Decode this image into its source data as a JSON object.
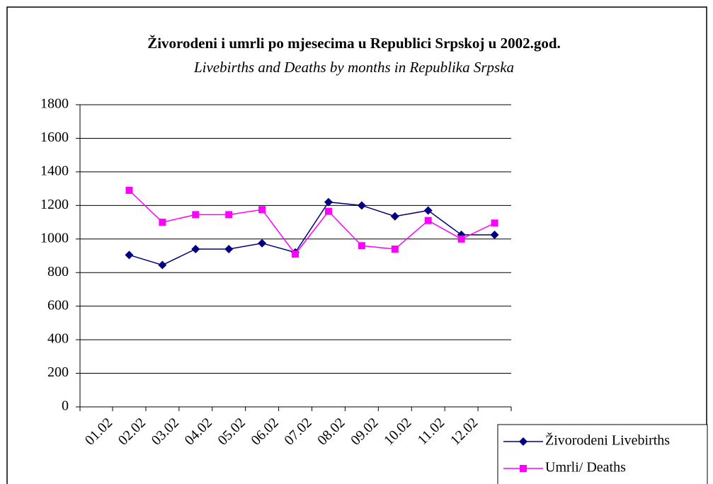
{
  "chart_data": {
    "type": "line",
    "title": "Živorodeni i umrli po mjesecima u Republici Srpskoj u 2002.god.",
    "subtitle": "Livebirths and Deaths by months in Republika Srpska",
    "categories": [
      "01.02",
      "02.02",
      "03.02",
      "04.02",
      "05.02",
      "06.02",
      "07.02",
      "08.02",
      "09.02",
      "10.02",
      "11.02",
      "12.02"
    ],
    "series": [
      {
        "name": "Živorodeni Livebirths",
        "color": "#000080",
        "marker": "diamond",
        "values": [
          905,
          845,
          940,
          940,
          975,
          920,
          1220,
          1200,
          1135,
          1170,
          1025,
          1025
        ]
      },
      {
        "name": "Umrli/ Deaths",
        "color": "#ff00ff",
        "marker": "square",
        "values": [
          1290,
          1100,
          1145,
          1145,
          1175,
          910,
          1165,
          960,
          940,
          1110,
          1000,
          1095
        ]
      }
    ],
    "ylim": [
      0,
      1800
    ],
    "yticks": [
      0,
      200,
      400,
      600,
      800,
      1000,
      1200,
      1400,
      1600,
      1800
    ],
    "grid": true,
    "legend": "bottom-right"
  }
}
